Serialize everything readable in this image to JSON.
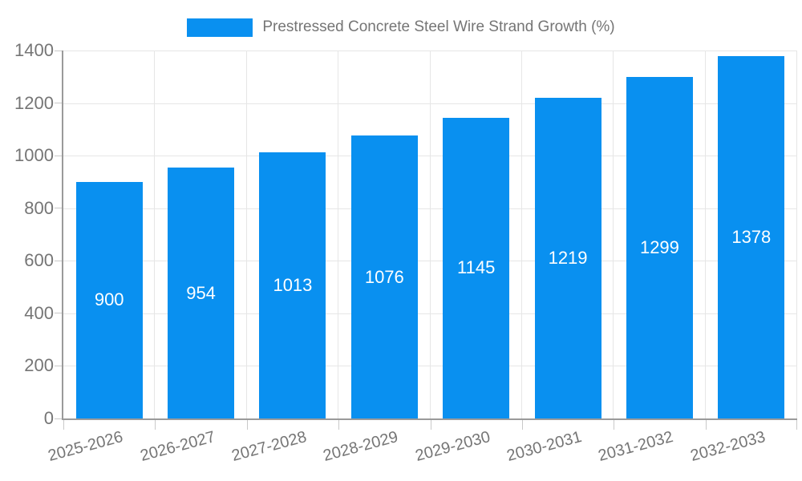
{
  "legend": {
    "label": "Prestressed Concrete Steel Wire Strand Growth (%)"
  },
  "colors": {
    "bar": "#0990f0",
    "axis": "#9a9a9a",
    "grid": "#e6e6e6",
    "tick": "#c9c9c9",
    "axis_text": "#757575",
    "value_label_text": "#ffffff",
    "legend_text": "#757575"
  },
  "chart_data": {
    "type": "bar",
    "title": "",
    "xlabel": "",
    "ylabel": "",
    "categories": [
      "2025-2026",
      "2026-2027",
      "2027-2028",
      "2028-2029",
      "2029-2030",
      "2030-2031",
      "2031-2032",
      "2032-2033"
    ],
    "series": [
      {
        "name": "Prestressed Concrete Steel Wire Strand Growth (%)",
        "values": [
          900,
          954,
          1013,
          1076,
          1145,
          1219,
          1299,
          1378
        ]
      }
    ],
    "ylim": [
      0,
      1400
    ],
    "ytick_step": 200,
    "ytick_labels": [
      "0",
      "200",
      "400",
      "600",
      "800",
      "1000",
      "1200",
      "1400"
    ],
    "grid": true,
    "legend_position": "top-center",
    "bar_labels_inside": true,
    "x_tick_rotation_deg": -15
  }
}
